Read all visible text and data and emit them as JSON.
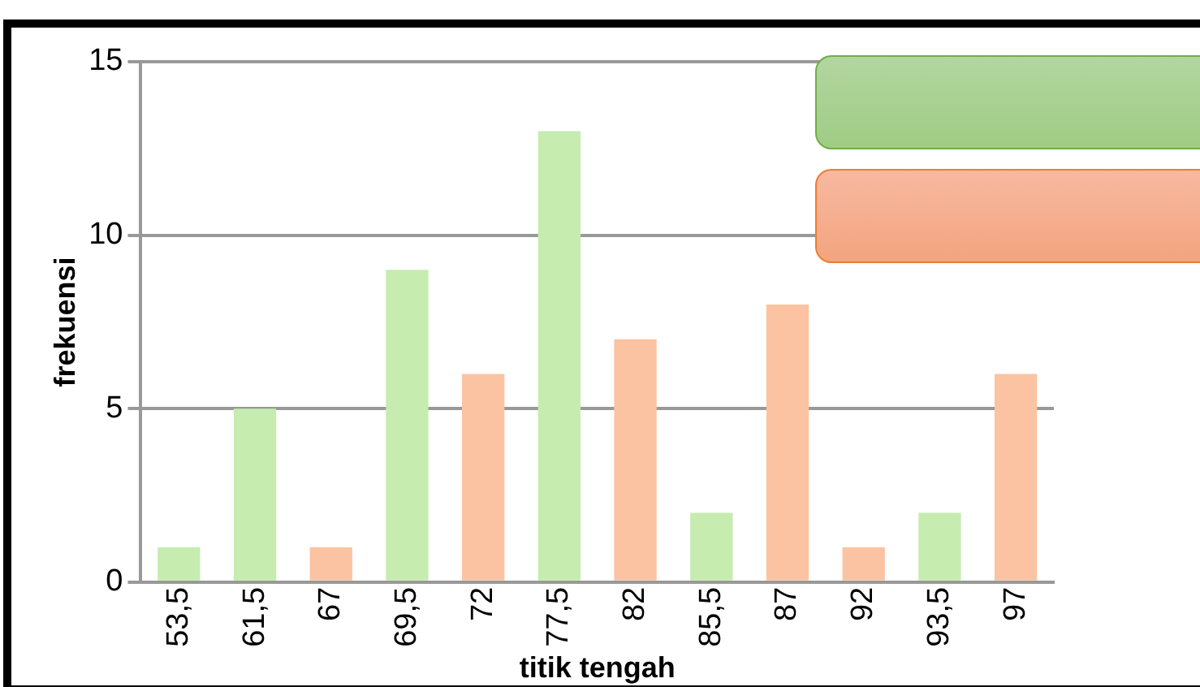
{
  "chart_data": {
    "type": "bar",
    "xlabel": "titik tengah",
    "ylabel": "frekuensi",
    "categories": [
      "53,5",
      "61,5",
      "67",
      "69,5",
      "72",
      "77,5",
      "82",
      "85,5",
      "87",
      "92",
      "93,5",
      "97"
    ],
    "values": [
      1,
      5,
      1,
      9,
      6,
      13,
      7,
      2,
      8,
      1,
      2,
      6
    ],
    "colors": [
      "#c6ecb0",
      "#c6ecb0",
      "#fbc3a2",
      "#c6ecb0",
      "#fbc3a2",
      "#c6ecb0",
      "#fbc3a2",
      "#c6ecb0",
      "#fbc3a2",
      "#fbc3a2",
      "#c6ecb0",
      "#fbc3a2"
    ],
    "ylim": [
      0,
      15
    ],
    "yticks": [
      0,
      5,
      10,
      15
    ],
    "grid": "y",
    "legend": false
  }
}
